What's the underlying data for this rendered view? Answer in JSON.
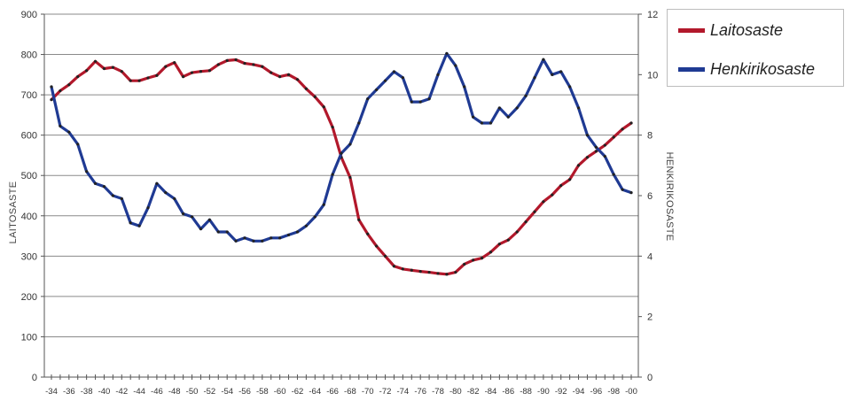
{
  "chart_data": {
    "type": "line",
    "categories": [
      "-34",
      "-35",
      "-36",
      "-37",
      "-38",
      "-39",
      "-40",
      "-41",
      "-42",
      "-43",
      "-44",
      "-45",
      "-46",
      "-47",
      "-48",
      "-49",
      "-50",
      "-51",
      "-52",
      "-53",
      "-54",
      "-55",
      "-56",
      "-57",
      "-58",
      "-59",
      "-60",
      "-61",
      "-62",
      "-63",
      "-64",
      "-65",
      "-66",
      "-67",
      "-68",
      "-69",
      "-70",
      "-71",
      "-72",
      "-73",
      "-74",
      "-75",
      "-76",
      "-77",
      "-78",
      "-79",
      "-80",
      "-81",
      "-82",
      "-83",
      "-84",
      "-85",
      "-86",
      "-87",
      "-88",
      "-89",
      "-90",
      "-91",
      "-92",
      "-93",
      "-94",
      "-95",
      "-96",
      "-97",
      "-98",
      "-99",
      "-00"
    ],
    "x_tick_labels": [
      "-34",
      "-36",
      "-38",
      "-40",
      "-42",
      "-44",
      "-46",
      "-48",
      "-50",
      "-52",
      "-54",
      "-56",
      "-58",
      "-60",
      "-62",
      "-64",
      "-66",
      "-68",
      "-70",
      "-72",
      "-74",
      "-76",
      "-78",
      "-80",
      "-82",
      "-84",
      "-86",
      "-88",
      "-90",
      "-92",
      "-94",
      "-96",
      "-98",
      "-00"
    ],
    "y_left": {
      "label": "LAITOSASTE",
      "ylim": [
        0,
        900
      ],
      "ticks": [
        0,
        100,
        200,
        300,
        400,
        500,
        600,
        700,
        800,
        900
      ]
    },
    "y_right": {
      "label": "HENKIRIKOSASTE",
      "ylim": [
        0,
        12
      ],
      "ticks": [
        0,
        2,
        4,
        6,
        8,
        10,
        12
      ]
    },
    "grid": true,
    "legend_position": "top-right",
    "series": [
      {
        "name": "Laitosaste",
        "axis": "left",
        "color": "#b2182b",
        "values": [
          688,
          710,
          725,
          745,
          760,
          783,
          765,
          768,
          758,
          735,
          735,
          742,
          748,
          770,
          780,
          745,
          755,
          758,
          760,
          775,
          785,
          787,
          778,
          775,
          770,
          755,
          745,
          750,
          738,
          715,
          695,
          670,
          620,
          545,
          495,
          390,
          355,
          325,
          300,
          275,
          268,
          265,
          262,
          260,
          257,
          255,
          260,
          280,
          290,
          295,
          310,
          330,
          340,
          360,
          385,
          410,
          435,
          452,
          475,
          490,
          525,
          545,
          560,
          575,
          595,
          615,
          630
        ]
      },
      {
        "name": "Henkirikosaste",
        "axis": "right",
        "color": "#1f3a93",
        "values": [
          9.6,
          8.3,
          8.1,
          7.7,
          6.8,
          6.4,
          6.3,
          6.0,
          5.9,
          5.1,
          5.0,
          5.6,
          6.4,
          6.1,
          5.9,
          5.4,
          5.3,
          4.9,
          5.2,
          4.8,
          4.8,
          4.5,
          4.6,
          4.5,
          4.5,
          4.6,
          4.6,
          4.7,
          4.8,
          5.0,
          5.3,
          5.7,
          6.7,
          7.4,
          7.7,
          8.4,
          9.2,
          9.5,
          9.8,
          10.1,
          9.9,
          9.1,
          9.1,
          9.2,
          10.0,
          10.7,
          10.3,
          9.6,
          8.6,
          8.4,
          8.4,
          8.9,
          8.6,
          8.9,
          9.3,
          9.9,
          10.5,
          10.0,
          10.1,
          9.6,
          8.9,
          8.0,
          7.6,
          7.3,
          6.7,
          6.2,
          6.1
        ]
      }
    ]
  },
  "legend": {
    "items": [
      {
        "label": "Laitosaste",
        "color": "#b2182b"
      },
      {
        "label": "Henkirikosaste",
        "color": "#1f3a93"
      }
    ]
  }
}
